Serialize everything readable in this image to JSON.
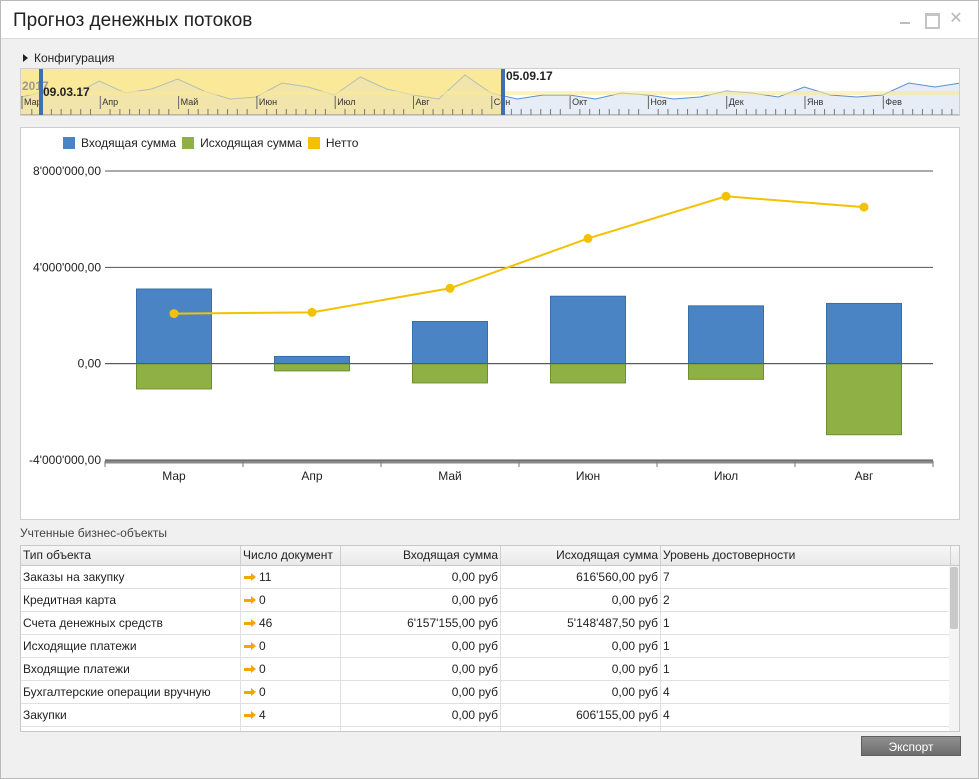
{
  "window": {
    "title": "Прогноз денежных потоков"
  },
  "config": {
    "label": "Конфигурация"
  },
  "timeline": {
    "start_date": "09.03.17",
    "end_date": "05.09.17",
    "faded_label": "2017",
    "months": [
      "Мар",
      "Апр",
      "Май",
      "Июн",
      "Июл",
      "Авг",
      "Сен",
      "Окт",
      "Ноя",
      "Дек",
      "Янв",
      "Фев"
    ],
    "selection_color": "#fbe99a",
    "handle_color": "#3f6fb3"
  },
  "chart_data": {
    "type": "bar",
    "categories": [
      "Мар",
      "Апр",
      "Май",
      "Июн",
      "Июл",
      "Авг"
    ],
    "series": [
      {
        "name": "Входящая сумма",
        "kind": "bar",
        "color": "#4a84c4",
        "values": [
          3100000,
          300000,
          1750000,
          2800000,
          2400000,
          2500000
        ]
      },
      {
        "name": "Исходящая сумма",
        "kind": "bar",
        "color": "#8fb045",
        "values": [
          -1050000,
          -300000,
          -800000,
          -800000,
          -650000,
          -2950000
        ]
      },
      {
        "name": "Нетто",
        "kind": "line",
        "color": "#f2c200",
        "values": [
          2080000,
          2130000,
          3130000,
          5200000,
          6950000,
          6500000
        ]
      }
    ],
    "yticks": [
      "8'000'000,00",
      "4'000'000,00",
      "0,00",
      "-4'000'000,00"
    ],
    "ylim": [
      -4000000,
      8000000
    ],
    "title": "",
    "xlabel": "",
    "ylabel": "",
    "legend_position": "top-left",
    "grid": true
  },
  "table": {
    "section_label": "Учтенные бизнес-объекты",
    "columns": [
      "Тип объекта",
      "Число документ",
      "Входящая сумма",
      "Исходящая сумма",
      "Уровень достоверности"
    ],
    "rows": [
      {
        "type": "Заказы на закупку",
        "count": "11",
        "incoming": "0,00 руб",
        "outgoing": "616'560,00 руб",
        "level": "7"
      },
      {
        "type": "Кредитная карта",
        "count": "0",
        "incoming": "0,00 руб",
        "outgoing": "0,00 руб",
        "level": "2"
      },
      {
        "type": "Счета денежных средств",
        "count": "46",
        "incoming": "6'157'155,00 руб",
        "outgoing": "5'148'487,50 руб",
        "level": "1"
      },
      {
        "type": "Исходящие платежи",
        "count": "0",
        "incoming": "0,00 руб",
        "outgoing": "0,00 руб",
        "level": "1"
      },
      {
        "type": "Входящие платежи",
        "count": "0",
        "incoming": "0,00 руб",
        "outgoing": "0,00 руб",
        "level": "1"
      },
      {
        "type": "Бухгалтерские операции вручную",
        "count": "0",
        "incoming": "0,00 руб",
        "outgoing": "0,00 руб",
        "level": "4"
      },
      {
        "type": "Закупки",
        "count": "4",
        "incoming": "0,00 руб",
        "outgoing": "606'155,00 руб",
        "level": "4"
      }
    ]
  },
  "footer": {
    "export_label": "Экспорт"
  }
}
